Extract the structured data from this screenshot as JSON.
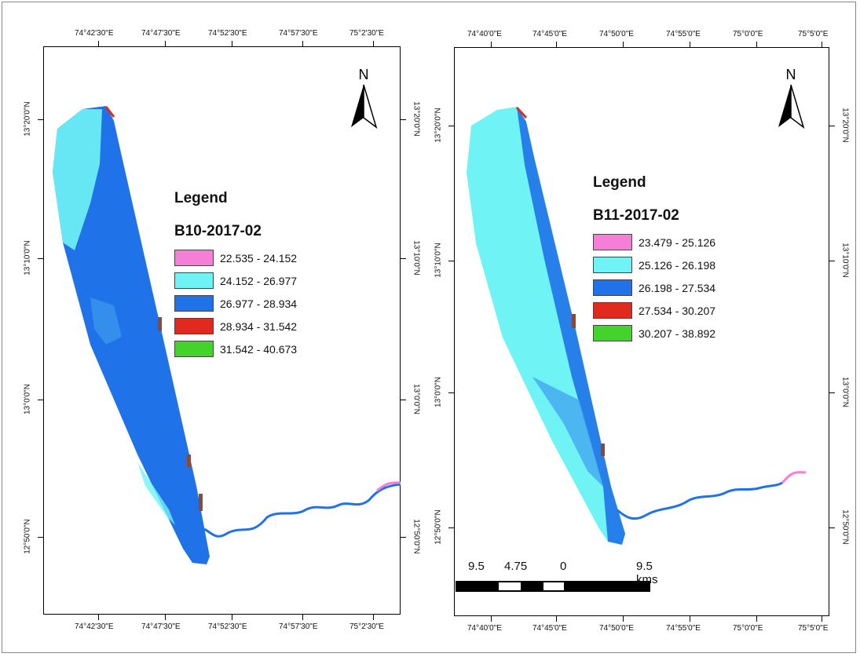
{
  "colors": {
    "c1": "#f57ed6",
    "c2": "#6ff3f5",
    "c3": "#1f72e8",
    "c4": "#e02a1e",
    "c5": "#44d32a",
    "border": "#000000"
  },
  "maps": [
    {
      "legend_title": "Legend",
      "legend_subtitle": "B10-2017-02",
      "classes": [
        "22.535 - 24.152",
        "24.152 - 26.977",
        "26.977 - 28.934",
        "28.934 - 31.542",
        "31.542 - 40.673"
      ],
      "lon_labels": [
        "74°42'30\"E",
        "74°47'30\"E",
        "74°52'30\"E",
        "74°57'30\"E",
        "75°2'30\"E"
      ],
      "lat_labels": [
        "13°20'0\"N",
        "13°10'0\"N",
        "13°0'0\"N",
        "12°50'0\"N"
      ],
      "north_label": "N",
      "dominant_class": "26.977 - 28.934"
    },
    {
      "legend_title": "Legend",
      "legend_subtitle": "B11-2017-02",
      "classes": [
        "23.479 - 25.126",
        "25.126 - 26.198",
        "26.198 - 27.534",
        "27.534 - 30.207",
        "30.207 - 38.892"
      ],
      "lon_labels": [
        "74°40'0\"E",
        "74°45'0\"E",
        "74°50'0\"E",
        "74°55'0\"E",
        "75°0'0\"E",
        "75°5'0\"E"
      ],
      "lat_labels": [
        "13°20'0\"N",
        "13°10'0\"N",
        "13°0'0\"N",
        "12°50'0\"N"
      ],
      "north_label": "N",
      "dominant_class": "25.126 - 26.198"
    }
  ],
  "scalebar": {
    "labels": [
      "9.5",
      "4.75",
      "0",
      "9.5 kms"
    ]
  }
}
